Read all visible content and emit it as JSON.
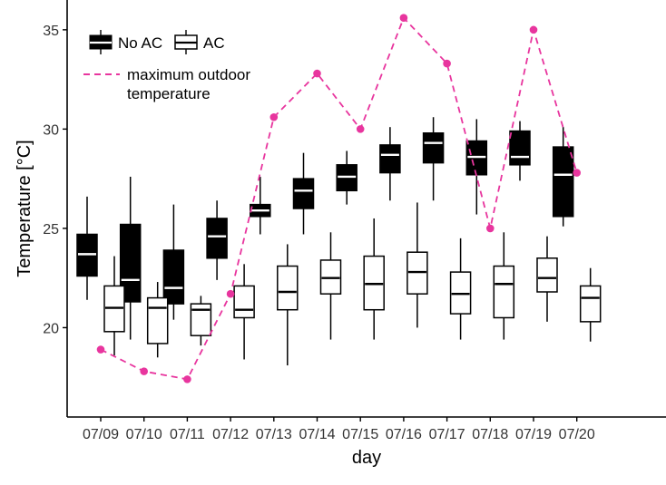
{
  "chart_data": {
    "type": "box",
    "title": "",
    "xlabel": "day",
    "ylabel": "Temperature [°C]",
    "ylim": [
      15.5,
      36.5
    ],
    "yticks": [
      20,
      25,
      30,
      35
    ],
    "grid": false,
    "legend_placement": "top-left",
    "categories": [
      "07/09",
      "07/10",
      "07/11",
      "07/12",
      "07/13",
      "07/14",
      "07/15",
      "07/16",
      "07/17",
      "07/18",
      "07/19",
      "07/20"
    ],
    "series": [
      {
        "name": "No AC",
        "fill": "#000000",
        "median_color": "#ffffff",
        "boxes": [
          {
            "whisker_low": 21.4,
            "q1": 22.6,
            "median": 23.7,
            "q3": 24.7,
            "whisker_high": 26.6
          },
          {
            "whisker_low": 19.4,
            "q1": 21.3,
            "median": 22.4,
            "q3": 25.2,
            "whisker_high": 27.6
          },
          {
            "whisker_low": 20.4,
            "q1": 21.2,
            "median": 22.0,
            "q3": 23.9,
            "whisker_high": 26.2
          },
          {
            "whisker_low": 22.4,
            "q1": 23.5,
            "median": 24.6,
            "q3": 25.5,
            "whisker_high": 26.4
          },
          {
            "whisker_low": 24.7,
            "q1": 25.6,
            "median": 25.9,
            "q3": 26.2,
            "whisker_high": 27.6
          },
          {
            "whisker_low": 24.7,
            "q1": 26.0,
            "median": 26.9,
            "q3": 27.5,
            "whisker_high": 28.8
          },
          {
            "whisker_low": 26.2,
            "q1": 26.9,
            "median": 27.6,
            "q3": 28.2,
            "whisker_high": 28.9
          },
          {
            "whisker_low": 26.4,
            "q1": 27.8,
            "median": 28.7,
            "q3": 29.2,
            "whisker_high": 30.1
          },
          {
            "whisker_low": 26.4,
            "q1": 28.3,
            "median": 29.3,
            "q3": 29.8,
            "whisker_high": 30.6
          },
          {
            "whisker_low": 25.7,
            "q1": 27.7,
            "median": 28.6,
            "q3": 29.4,
            "whisker_high": 30.5
          },
          {
            "whisker_low": 27.4,
            "q1": 28.2,
            "median": 28.6,
            "q3": 29.9,
            "whisker_high": 30.4
          },
          {
            "whisker_low": 25.1,
            "q1": 25.6,
            "median": 27.7,
            "q3": 29.1,
            "whisker_high": 30.1
          }
        ]
      },
      {
        "name": "AC",
        "fill": "#ffffff",
        "median_color": "#000000",
        "boxes": [
          {
            "whisker_low": 18.6,
            "q1": 19.8,
            "median": 21.0,
            "q3": 22.1,
            "whisker_high": 23.6
          },
          {
            "whisker_low": 18.5,
            "q1": 19.2,
            "median": 21.0,
            "q3": 21.5,
            "whisker_high": 22.3
          },
          {
            "whisker_low": 19.1,
            "q1": 19.6,
            "median": 20.9,
            "q3": 21.2,
            "whisker_high": 21.6
          },
          {
            "whisker_low": 18.4,
            "q1": 20.5,
            "median": 20.9,
            "q3": 22.1,
            "whisker_high": 23.2
          },
          {
            "whisker_low": 18.1,
            "q1": 20.9,
            "median": 21.8,
            "q3": 23.1,
            "whisker_high": 24.2
          },
          {
            "whisker_low": 19.4,
            "q1": 21.7,
            "median": 22.5,
            "q3": 23.4,
            "whisker_high": 24.8
          },
          {
            "whisker_low": 19.4,
            "q1": 20.9,
            "median": 22.2,
            "q3": 23.6,
            "whisker_high": 25.5
          },
          {
            "whisker_low": 20.0,
            "q1": 21.7,
            "median": 22.8,
            "q3": 23.8,
            "whisker_high": 26.3
          },
          {
            "whisker_low": 19.4,
            "q1": 20.7,
            "median": 21.7,
            "q3": 22.8,
            "whisker_high": 24.5
          },
          {
            "whisker_low": 19.4,
            "q1": 20.5,
            "median": 22.2,
            "q3": 23.1,
            "whisker_high": 24.8
          },
          {
            "whisker_low": 20.3,
            "q1": 21.8,
            "median": 22.5,
            "q3": 23.5,
            "whisker_high": 24.6
          },
          {
            "whisker_low": 19.3,
            "q1": 20.3,
            "median": 21.5,
            "q3": 22.1,
            "whisker_high": 23.0
          }
        ]
      }
    ],
    "line_series": {
      "name": "maximum outdoor temperature",
      "color": "#e8359e",
      "style": "dashed",
      "values": [
        18.9,
        17.8,
        17.4,
        21.7,
        30.6,
        32.8,
        30.0,
        35.6,
        33.3,
        25.0,
        35.0,
        27.8
      ]
    },
    "legend": {
      "no_ac_label": "No AC",
      "ac_label": "AC",
      "line_label_line1": "maximum outdoor",
      "line_label_line2": "temperature"
    }
  }
}
